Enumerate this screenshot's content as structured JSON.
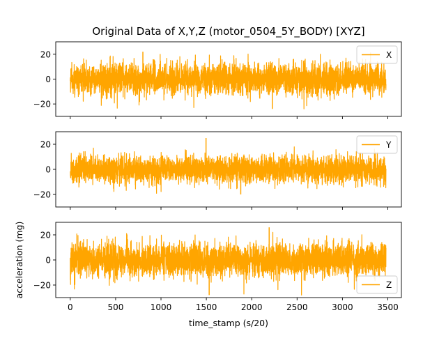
{
  "chart_data": {
    "type": "line",
    "title": "Original Data of X,Y,Z (motor_0504_5Y_BODY) [XYZ]",
    "xlabel": "time_stamp (s/20)",
    "shared_ylabel": "acceleration (mg)",
    "xlim": [
      -160,
      3650
    ],
    "x_ticks": [
      0,
      500,
      1000,
      1500,
      2000,
      2500,
      3000,
      3500
    ],
    "x_tick_labels": [
      "0",
      "500",
      "1000",
      "1500",
      "2000",
      "2500",
      "3000",
      "3500"
    ],
    "line_color": "#ffa500",
    "grid": false,
    "panels": [
      {
        "series": {
          "name": "X",
          "x_range": [
            0,
            3480
          ],
          "typical_range": [
            -15,
            15
          ],
          "extremes": [
            -24,
            22
          ]
        },
        "ylim": [
          -30,
          30
        ],
        "y_ticks": [
          20,
          0,
          -20
        ],
        "y_tick_labels": [
          "20",
          "0",
          "−20"
        ],
        "legend": "upper right"
      },
      {
        "series": {
          "name": "Y",
          "x_range": [
            0,
            3480
          ],
          "typical_range": [
            -13,
            13
          ],
          "extremes": [
            -20,
            25
          ]
        },
        "ylim": [
          -30,
          30
        ],
        "y_ticks": [
          20,
          0,
          -20
        ],
        "y_tick_labels": [
          "20",
          "0",
          "−20"
        ],
        "legend": "upper right"
      },
      {
        "series": {
          "name": "Z",
          "x_range": [
            0,
            3480
          ],
          "typical_range": [
            -16,
            16
          ],
          "extremes": [
            -28,
            26
          ]
        },
        "ylim": [
          -30,
          30
        ],
        "y_ticks": [
          20,
          0,
          -20
        ],
        "y_tick_labels": [
          "20",
          "0",
          "−20"
        ],
        "legend": "lower right"
      }
    ]
  }
}
